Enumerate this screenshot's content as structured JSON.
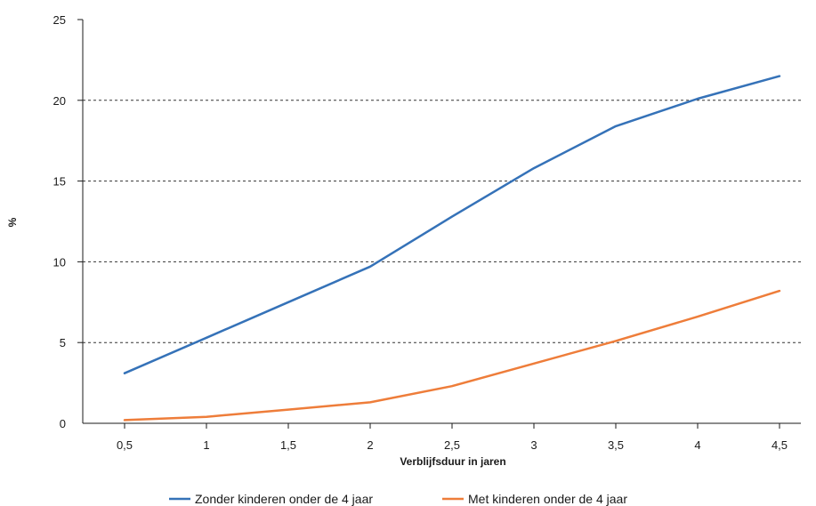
{
  "chart_data": {
    "type": "line",
    "title": "",
    "xlabel": "Verblijfsduur in jaren",
    "ylabel": "%",
    "x_tick_labels": [
      "0,5",
      "1",
      "1,5",
      "2",
      "2,5",
      "3",
      "3,5",
      "4",
      "4,5"
    ],
    "y_tick_labels": [
      "0",
      "5",
      "10",
      "15",
      "20",
      "25"
    ],
    "x": [
      0.5,
      1,
      1.5,
      2,
      2.5,
      3,
      3.5,
      4,
      4.5
    ],
    "ylim": [
      0,
      25
    ],
    "grid": "horizontal dashed",
    "legend_position": "bottom",
    "series": [
      {
        "name": "Zonder kinderen onder de 4 jaar",
        "color": "#3572b8",
        "values": [
          3.1,
          5.3,
          7.5,
          9.7,
          12.8,
          15.8,
          18.4,
          20.1,
          21.5
        ]
      },
      {
        "name": "Met kinderen onder de 4 jaar",
        "color": "#ee7d3a",
        "values": [
          0.2,
          0.4,
          0.85,
          1.3,
          2.3,
          3.7,
          5.1,
          6.6,
          8.2
        ]
      }
    ]
  }
}
